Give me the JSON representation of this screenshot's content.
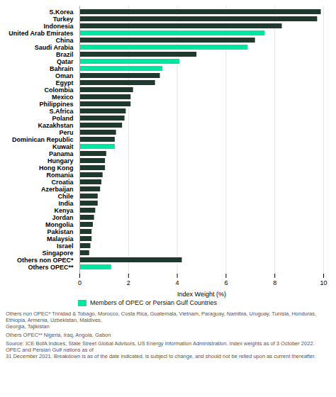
{
  "chart_data": {
    "type": "bar",
    "orientation": "horizontal",
    "categories": [
      "S.Korea",
      "Turkey",
      "Indonesia",
      "United Arab Emirates",
      "China",
      "Saudi Arabia",
      "Brazil",
      "Qatar",
      "Bahrain",
      "Oman",
      "Egypt",
      "Colombia",
      "Mexico",
      "Philippines",
      "S.Africa",
      "Poland",
      "Kazakhstan",
      "Peru",
      "Dominican Republic",
      "Kuwait",
      "Panama",
      "Hungary",
      "Hong Kong",
      "Romania",
      "Croatia",
      "Azerbaijan",
      "Chile",
      "India",
      "Kenya",
      "Jordan",
      "Mongolia",
      "Pakistan",
      "Malaysia",
      "Israel",
      "Singapore",
      "Others non OPEC*",
      "Others OPEC**"
    ],
    "values": [
      9.9,
      9.75,
      8.3,
      7.6,
      7.2,
      6.9,
      4.8,
      4.1,
      3.4,
      3.3,
      3.1,
      2.2,
      2.1,
      2.1,
      1.9,
      1.85,
      1.75,
      1.5,
      1.45,
      1.45,
      1.1,
      1.05,
      1.05,
      0.95,
      0.9,
      0.85,
      0.75,
      0.75,
      0.65,
      0.6,
      0.55,
      0.5,
      0.5,
      0.45,
      0.4,
      4.2,
      1.3
    ],
    "colors": [
      "#1e3a2f",
      "#1e3a2f",
      "#1e3a2f",
      "#00e5a0",
      "#1e3a2f",
      "#00e5a0",
      "#1e3a2f",
      "#00e5a0",
      "#00e5a0",
      "#1e3a2f",
      "#1e3a2f",
      "#1e3a2f",
      "#1e3a2f",
      "#1e3a2f",
      "#1e3a2f",
      "#1e3a2f",
      "#1e3a2f",
      "#1e3a2f",
      "#1e3a2f",
      "#00e5a0",
      "#1e3a2f",
      "#1e3a2f",
      "#1e3a2f",
      "#1e3a2f",
      "#1e3a2f",
      "#1e3a2f",
      "#1e3a2f",
      "#1e3a2f",
      "#1e3a2f",
      "#1e3a2f",
      "#1e3a2f",
      "#1e3a2f",
      "#1e3a2f",
      "#1e3a2f",
      "#1e3a2f",
      "#1e3a2f",
      "#00e5a0"
    ],
    "xlabel": "Index Weight (%)",
    "xlim": [
      0,
      10
    ],
    "xticks": [
      0,
      2,
      4,
      6,
      8,
      10
    ],
    "grid": true,
    "legend": "lower left",
    "legend_entries": [
      {
        "name": "Members of OPEC or Persian Gulf Countries",
        "color": "#00e5a0"
      }
    ],
    "annotations": [
      "Others non OPEC* Trinidad & Tobago, Morocco, Costa Rica, Guatemala, Vietnam, Paraguay, Namibia, Uruguay, Tunisia, Honduras, Ethiopia, Armenia, Uzbekistan, Maldives,\nGeorgia, Tajikistan",
      "Others OPEC** Nigeria, Iraq, Angola, Gabon",
      "Source: ICE BofA Indices, State Street Global Advisors, US Energy Information Administration. Index weights as of 3 October 2022. OPEC and Persian Gulf nations as of\n31 December 2021. Breakdown is as of the date indicated, is subject to change, and should not be relied upon as current thereafter."
    ]
  }
}
